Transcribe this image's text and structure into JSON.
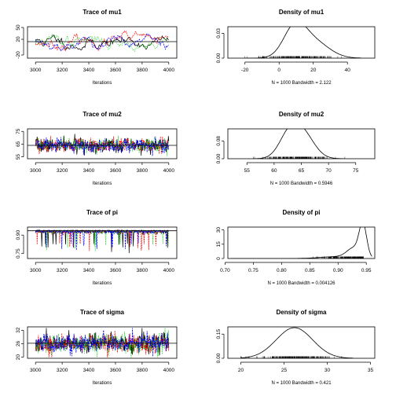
{
  "chart_data": [
    {
      "type": "line",
      "title": "Trace of mu1",
      "xlabel": "Iterations",
      "xlim": [
        2940,
        4060
      ],
      "ylim": [
        -28,
        52
      ],
      "xticks": [
        "3000",
        "3200",
        "3400",
        "3600",
        "3800",
        "4000"
      ],
      "yticks": [
        "-20",
        "20",
        "50"
      ],
      "ytick_values": [
        -20,
        20,
        50
      ],
      "series_colors": [
        "#000000",
        "#ff0000",
        "#00cd00",
        "#0000ff"
      ],
      "trace": {
        "mean": 14,
        "sd": 11,
        "min": -22,
        "max": 47,
        "phi": 0.92,
        "seeds": [
          11,
          23,
          37,
          53
        ],
        "n": 160
      },
      "hline": 14
    },
    {
      "type": "line",
      "title": "Density of mu1",
      "xlabel": "N = 1000   Bandwidth = 2.122",
      "xlim": [
        -30,
        56
      ],
      "ylim": [
        0,
        0.038
      ],
      "xticks": [
        "-20",
        "0",
        "20",
        "40"
      ],
      "xtick_values": [
        -20,
        0,
        20,
        40
      ],
      "yticks": [
        "0.00",
        "0.03"
      ],
      "ytick_values": [
        0,
        0.03
      ],
      "density": {
        "components": [
          {
            "w": 0.55,
            "m": 9,
            "s": 6.5
          },
          {
            "w": 0.45,
            "m": 20,
            "s": 9
          }
        ],
        "from": -20,
        "to": 48
      },
      "rug": {
        "mean": 12,
        "sd": 10.5,
        "min": -20,
        "max": 48,
        "n": 220,
        "seed": 5
      }
    },
    {
      "type": "line",
      "title": "Trace of mu2",
      "xlabel": "Iterations",
      "xlim": [
        2940,
        4060
      ],
      "ylim": [
        53.5,
        77
      ],
      "xticks": [
        "3000",
        "3200",
        "3400",
        "3600",
        "3800",
        "4000"
      ],
      "yticks": [
        "55",
        "65",
        "75"
      ],
      "ytick_values": [
        55,
        65,
        75
      ],
      "series_colors": [
        "#000000",
        "#ff0000",
        "#00cd00",
        "#0000ff"
      ],
      "trace": {
        "mean": 64,
        "sd": 2.8,
        "min": 55,
        "max": 76,
        "phi": 0.1,
        "seeds": [
          7,
          19,
          31,
          43
        ],
        "n": 320
      },
      "hline": 64
    },
    {
      "type": "line",
      "title": "Density of mu2",
      "xlabel": "N = 1000   Bandwidth = 0.5946",
      "xlim": [
        51.5,
        78.5
      ],
      "ylim": [
        0,
        0.135
      ],
      "xticks": [
        "55",
        "60",
        "65",
        "70",
        "75"
      ],
      "xtick_values": [
        55,
        60,
        65,
        70,
        75
      ],
      "yticks": [
        "0.00",
        "0.08"
      ],
      "ytick_values": [
        0,
        0.08
      ],
      "density": {
        "components": [
          {
            "w": 0.4,
            "m": 62.6,
            "s": 1.8
          },
          {
            "w": 0.6,
            "m": 65.2,
            "s": 2.1
          }
        ],
        "from": 56,
        "to": 73
      },
      "rug": {
        "mean": 64,
        "sd": 2.9,
        "min": 56,
        "max": 73,
        "n": 240,
        "seed": 9
      }
    },
    {
      "type": "line",
      "title": "Trace of pi",
      "xlabel": "Iterations",
      "xlim": [
        2940,
        4060
      ],
      "ylim": [
        0.71,
        0.965
      ],
      "xticks": [
        "3000",
        "3200",
        "3400",
        "3600",
        "3800",
        "4000"
      ],
      "yticks": [
        "0.75",
        "0.90"
      ],
      "ytick_values": [
        0.75,
        0.9
      ],
      "series_colors": [
        "#000000",
        "#ff0000",
        "#00cd00",
        "#0000ff"
      ],
      "trace": {
        "mean": 0.935,
        "sd": 0.03,
        "min": 0.75,
        "max": 0.955,
        "phi": 0.15,
        "seeds": [
          3,
          17,
          29,
          41
        ],
        "n": 320,
        "skew": "down"
      },
      "hline": 0.935
    },
    {
      "type": "line",
      "title": "Density of pi",
      "xlabel": "N = 1000   Bandwidth = 0.004126",
      "xlim": [
        0.705,
        0.965
      ],
      "ylim": [
        0,
        33
      ],
      "xticks": [
        "0.70",
        "0.75",
        "0.80",
        "0.85",
        "0.90",
        "0.95"
      ],
      "xtick_values": [
        0.7,
        0.75,
        0.8,
        0.85,
        0.9,
        0.95
      ],
      "yticks": [
        "0",
        "15",
        "30"
      ],
      "ytick_values": [
        0,
        15,
        30
      ],
      "density": {
        "components": [
          {
            "w": 0.55,
            "m": 0.944,
            "s": 0.0065
          },
          {
            "w": 0.3,
            "m": 0.928,
            "s": 0.012
          },
          {
            "w": 0.15,
            "m": 0.9,
            "s": 0.03
          }
        ],
        "from": 0.71,
        "to": 0.96
      },
      "rug": {
        "mean": 0.93,
        "sd": 0.035,
        "min": 0.71,
        "max": 0.955,
        "n": 260,
        "seed": 13,
        "skew": "down"
      }
    },
    {
      "type": "line",
      "title": "Trace of sigma",
      "xlabel": "Iterations",
      "xlim": [
        2940,
        4060
      ],
      "ylim": [
        19.5,
        33.5
      ],
      "xticks": [
        "3000",
        "3200",
        "3400",
        "3600",
        "3800",
        "4000"
      ],
      "yticks": [
        "20",
        "26",
        "32"
      ],
      "ytick_values": [
        20,
        26,
        32
      ],
      "series_colors": [
        "#000000",
        "#ff0000",
        "#00cd00",
        "#0000ff"
      ],
      "trace": {
        "mean": 26.2,
        "sd": 2.1,
        "min": 20,
        "max": 33,
        "phi": 0.1,
        "seeds": [
          2,
          14,
          26,
          38
        ],
        "n": 320
      },
      "hline": 26.2
    },
    {
      "type": "line",
      "title": "Density of sigma",
      "xlabel": "N = 1000   Bandwidth = 0.421",
      "xlim": [
        18.5,
        35.5
      ],
      "ylim": [
        0,
        0.195
      ],
      "xticks": [
        "20",
        "25",
        "30",
        "35"
      ],
      "xtick_values": [
        20,
        25,
        30,
        35
      ],
      "yticks": [
        "0.00",
        "0.15"
      ],
      "ytick_values": [
        0,
        0.15
      ],
      "density": {
        "components": [
          {
            "w": 1,
            "m": 26.2,
            "s": 2.1
          }
        ],
        "from": 20,
        "to": 33
      },
      "rug": {
        "mean": 26.2,
        "sd": 2.1,
        "min": 20,
        "max": 33,
        "n": 240,
        "seed": 21
      }
    }
  ]
}
